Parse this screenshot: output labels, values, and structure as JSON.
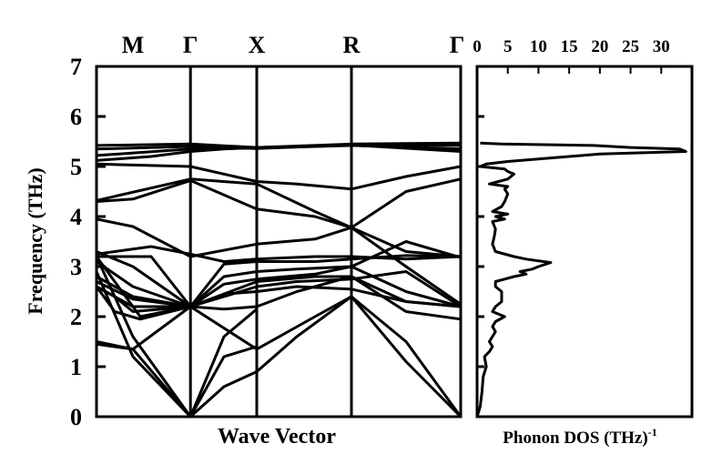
{
  "chart_data": [
    {
      "type": "line",
      "xlabel": "Wave Vector",
      "ylabel": "Frequency (THz)",
      "ylim": [
        0,
        7
      ],
      "y_ticks": [
        "0",
        "1",
        "2",
        "3",
        "4",
        "5",
        "6",
        "7"
      ],
      "high_symmetry_points": [
        "M",
        "Γ",
        "X",
        "R",
        "Γ"
      ],
      "k_path_positions": [
        0,
        0.258,
        0.44,
        0.7,
        1.0
      ],
      "series": [
        {
          "x": [
            0,
            0.258,
            0.44,
            0.7,
            1.0
          ],
          "y": [
            5.42,
            5.45,
            5.38,
            5.45,
            5.47
          ]
        },
        {
          "x": [
            0,
            0.258,
            0.44,
            0.7,
            1.0
          ],
          "y": [
            5.35,
            5.4,
            5.36,
            5.43,
            5.42
          ]
        },
        {
          "x": [
            0,
            0.258,
            0.44,
            0.7,
            1.0
          ],
          "y": [
            5.22,
            5.35,
            5.37,
            5.42,
            5.35
          ]
        },
        {
          "x": [
            0,
            0.15,
            0.258,
            0.35,
            0.44,
            0.7,
            1.0
          ],
          "y": [
            5.12,
            5.2,
            5.3,
            5.35,
            5.38,
            5.43,
            5.3
          ]
        },
        {
          "x": [
            0,
            0.258,
            0.44,
            0.55,
            0.7,
            0.85,
            1.0
          ],
          "y": [
            5.05,
            5.0,
            4.7,
            4.65,
            4.55,
            4.8,
            5.0
          ]
        },
        {
          "x": [
            0,
            0.258,
            0.44,
            0.6,
            0.7,
            0.85,
            1.0
          ],
          "y": [
            4.32,
            4.75,
            4.65,
            4.1,
            3.78,
            4.5,
            4.75
          ]
        },
        {
          "x": [
            0,
            0.1,
            0.258,
            0.44,
            0.6,
            0.7,
            0.85,
            1.0
          ],
          "y": [
            4.3,
            4.35,
            4.72,
            4.15,
            4.0,
            3.78,
            3.0,
            2.25
          ]
        },
        {
          "x": [
            0,
            0.1,
            0.258,
            0.44,
            0.6,
            0.7,
            0.85,
            1.0
          ],
          "y": [
            3.95,
            3.8,
            3.2,
            3.45,
            3.55,
            3.78,
            3.3,
            3.2
          ]
        },
        {
          "x": [
            0,
            0.1,
            0.258,
            0.35,
            0.44,
            0.6,
            0.7,
            0.85,
            1.0
          ],
          "y": [
            3.3,
            3.0,
            2.2,
            2.65,
            2.75,
            2.85,
            3.0,
            3.5,
            3.18
          ]
        },
        {
          "x": [
            0,
            0.15,
            0.258,
            0.35,
            0.44,
            0.6,
            0.7,
            0.85,
            1.0
          ],
          "y": [
            3.25,
            3.4,
            3.25,
            3.1,
            3.15,
            3.2,
            3.2,
            3.15,
            3.2
          ]
        },
        {
          "x": [
            0,
            0.15,
            0.258,
            0.35,
            0.44,
            0.6,
            0.7,
            0.85,
            1.0
          ],
          "y": [
            3.2,
            3.2,
            2.2,
            3.05,
            3.1,
            3.1,
            3.15,
            3.22,
            3.2
          ]
        },
        {
          "x": [
            0,
            0.1,
            0.258,
            0.35,
            0.44,
            0.55,
            0.7,
            0.85,
            1.0
          ],
          "y": [
            3.1,
            2.6,
            2.2,
            2.8,
            2.9,
            2.95,
            3.0,
            2.5,
            2.2
          ]
        },
        {
          "x": [
            0,
            0.1,
            0.258,
            0.35,
            0.44,
            0.55,
            0.7,
            0.85,
            1.0
          ],
          "y": [
            2.8,
            2.4,
            2.2,
            2.15,
            2.2,
            2.5,
            2.8,
            2.3,
            2.2
          ]
        },
        {
          "x": [
            0,
            0.1,
            0.258,
            0.35,
            0.44,
            0.55,
            0.7,
            0.85,
            1.0
          ],
          "y": [
            2.7,
            2.35,
            2.2,
            2.4,
            2.6,
            2.7,
            2.75,
            2.9,
            2.2
          ]
        },
        {
          "x": [
            0,
            0.05,
            0.1,
            0.258,
            0.35,
            0.44,
            0.55,
            0.7,
            0.85,
            1.0
          ],
          "y": [
            2.6,
            2.4,
            2.1,
            2.2,
            2.45,
            2.5,
            2.6,
            2.55,
            2.3,
            2.2
          ]
        },
        {
          "x": [
            0,
            0.1,
            0.258,
            0.44,
            0.6,
            0.7,
            0.85,
            1.0
          ],
          "y": [
            2.6,
            2.2,
            2.2,
            2.7,
            2.8,
            2.8,
            2.1,
            1.95
          ]
        },
        {
          "x": [
            0,
            0.05,
            0.12,
            0.258,
            0.44,
            0.6,
            0.7,
            0.85,
            1.0
          ],
          "y": [
            2.6,
            2.1,
            1.95,
            2.2,
            1.35,
            2.0,
            2.4,
            1.5,
            0
          ]
        },
        {
          "x": [
            0,
            0.1,
            0.258,
            0.35,
            0.44,
            0.55,
            0.7,
            0.85,
            1.0
          ],
          "y": [
            1.5,
            1.35,
            0,
            0.6,
            0.9,
            1.6,
            2.4,
            1.1,
            0
          ]
        },
        {
          "x": [
            0,
            0.1,
            0.258
          ],
          "y": [
            1.45,
            1.35,
            2.2
          ]
        },
        {
          "x": [
            0,
            0.1,
            0.258
          ],
          "y": [
            3.2,
            1.6,
            0
          ]
        },
        {
          "x": [
            0,
            0.1,
            0.258
          ],
          "y": [
            2.9,
            1.2,
            0
          ]
        },
        {
          "x": [
            0,
            0.12,
            0.258
          ],
          "y": [
            3.2,
            2.0,
            2.2
          ]
        },
        {
          "x": [
            0.258,
            0.35,
            0.44
          ],
          "y": [
            0,
            1.6,
            2.15
          ]
        },
        {
          "x": [
            0.258,
            0.35,
            0.44
          ],
          "y": [
            0,
            1.2,
            1.4
          ]
        }
      ]
    },
    {
      "type": "line",
      "xlabel": "Phonon DOS (THz)",
      "xlabel_sup": "-1",
      "x_ticks": [
        "0",
        "5",
        "10",
        "15",
        "20",
        "25",
        "30"
      ],
      "xlim": [
        0,
        35
      ],
      "ylim": [
        0,
        7
      ],
      "series": [
        {
          "x": [
            0,
            0.5,
            0.8,
            1.0,
            1.5,
            1.2,
            2.0,
            2.5,
            2.0,
            3.0,
            2.5,
            3.0,
            4.5,
            2.5,
            3.0,
            4.0,
            4.0,
            3.0,
            3.0,
            4.5,
            6.0,
            8.0,
            7.0,
            9.0,
            10.0,
            12.0,
            8.0,
            6.0,
            3.0,
            2.5,
            2.8,
            3.0,
            2.5,
            4.5,
            3.0,
            5.0,
            2.5,
            4.0,
            4.5,
            5.0,
            4.5,
            5.0,
            2.0,
            3.5,
            5.0,
            6.0,
            5.0,
            4.5,
            0.5,
            1.5,
            5.0,
            20.0,
            34.0,
            33.0,
            25.0,
            19.0,
            4.0,
            0.5
          ],
          "y": [
            0,
            0.2,
            0.5,
            0.8,
            1.0,
            1.2,
            1.3,
            1.4,
            1.5,
            1.7,
            1.8,
            1.9,
            2.0,
            2.1,
            2.2,
            2.3,
            2.5,
            2.6,
            2.7,
            2.75,
            2.8,
            2.85,
            2.9,
            2.95,
            3.0,
            3.08,
            3.15,
            3.2,
            3.3,
            3.45,
            3.6,
            3.75,
            3.9,
            3.95,
            4.0,
            4.05,
            4.1,
            4.2,
            4.3,
            4.45,
            4.55,
            4.6,
            4.65,
            4.7,
            4.75,
            4.85,
            4.9,
            4.95,
            5.0,
            5.05,
            5.1,
            5.25,
            5.3,
            5.35,
            5.38,
            5.42,
            5.45,
            5.47
          ]
        }
      ]
    }
  ]
}
